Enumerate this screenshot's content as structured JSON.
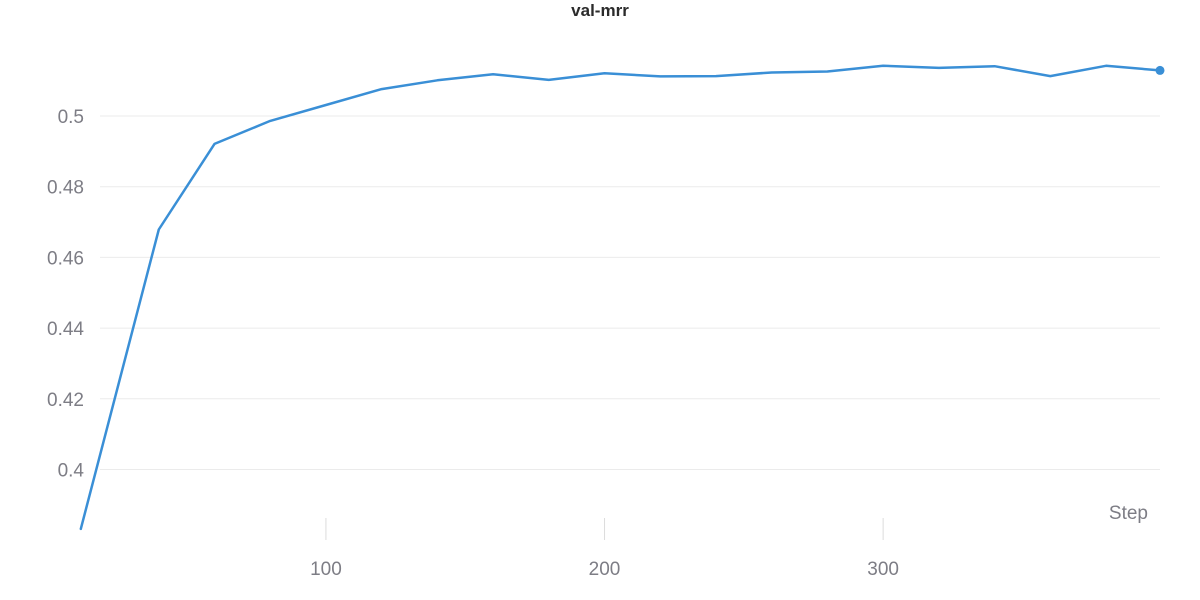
{
  "chart_data": {
    "type": "line",
    "title": "val-mrr",
    "xlabel": "Step",
    "ylabel": "",
    "xlim": [
      10,
      390
    ],
    "ylim": [
      0.383,
      0.528
    ],
    "xticks": [
      100,
      200,
      300
    ],
    "yticks": [
      0.4,
      0.42,
      0.44,
      0.46,
      0.48,
      0.5
    ],
    "grid": true,
    "series": [
      {
        "color": "#3a8fd6",
        "x": [
          12,
          40,
          60,
          80,
          100,
          120,
          140,
          160,
          180,
          200,
          220,
          240,
          260,
          280,
          300,
          320,
          340,
          360,
          380,
          400
        ],
        "values": [
          0.3832,
          0.4679,
          0.4921,
          0.4986,
          0.5031,
          0.5076,
          0.5101,
          0.5118,
          0.5102,
          0.5121,
          0.5112,
          0.5113,
          0.5123,
          0.5126,
          0.5142,
          0.5136,
          0.5141,
          0.5113,
          0.5142,
          0.5129
        ]
      }
    ]
  }
}
